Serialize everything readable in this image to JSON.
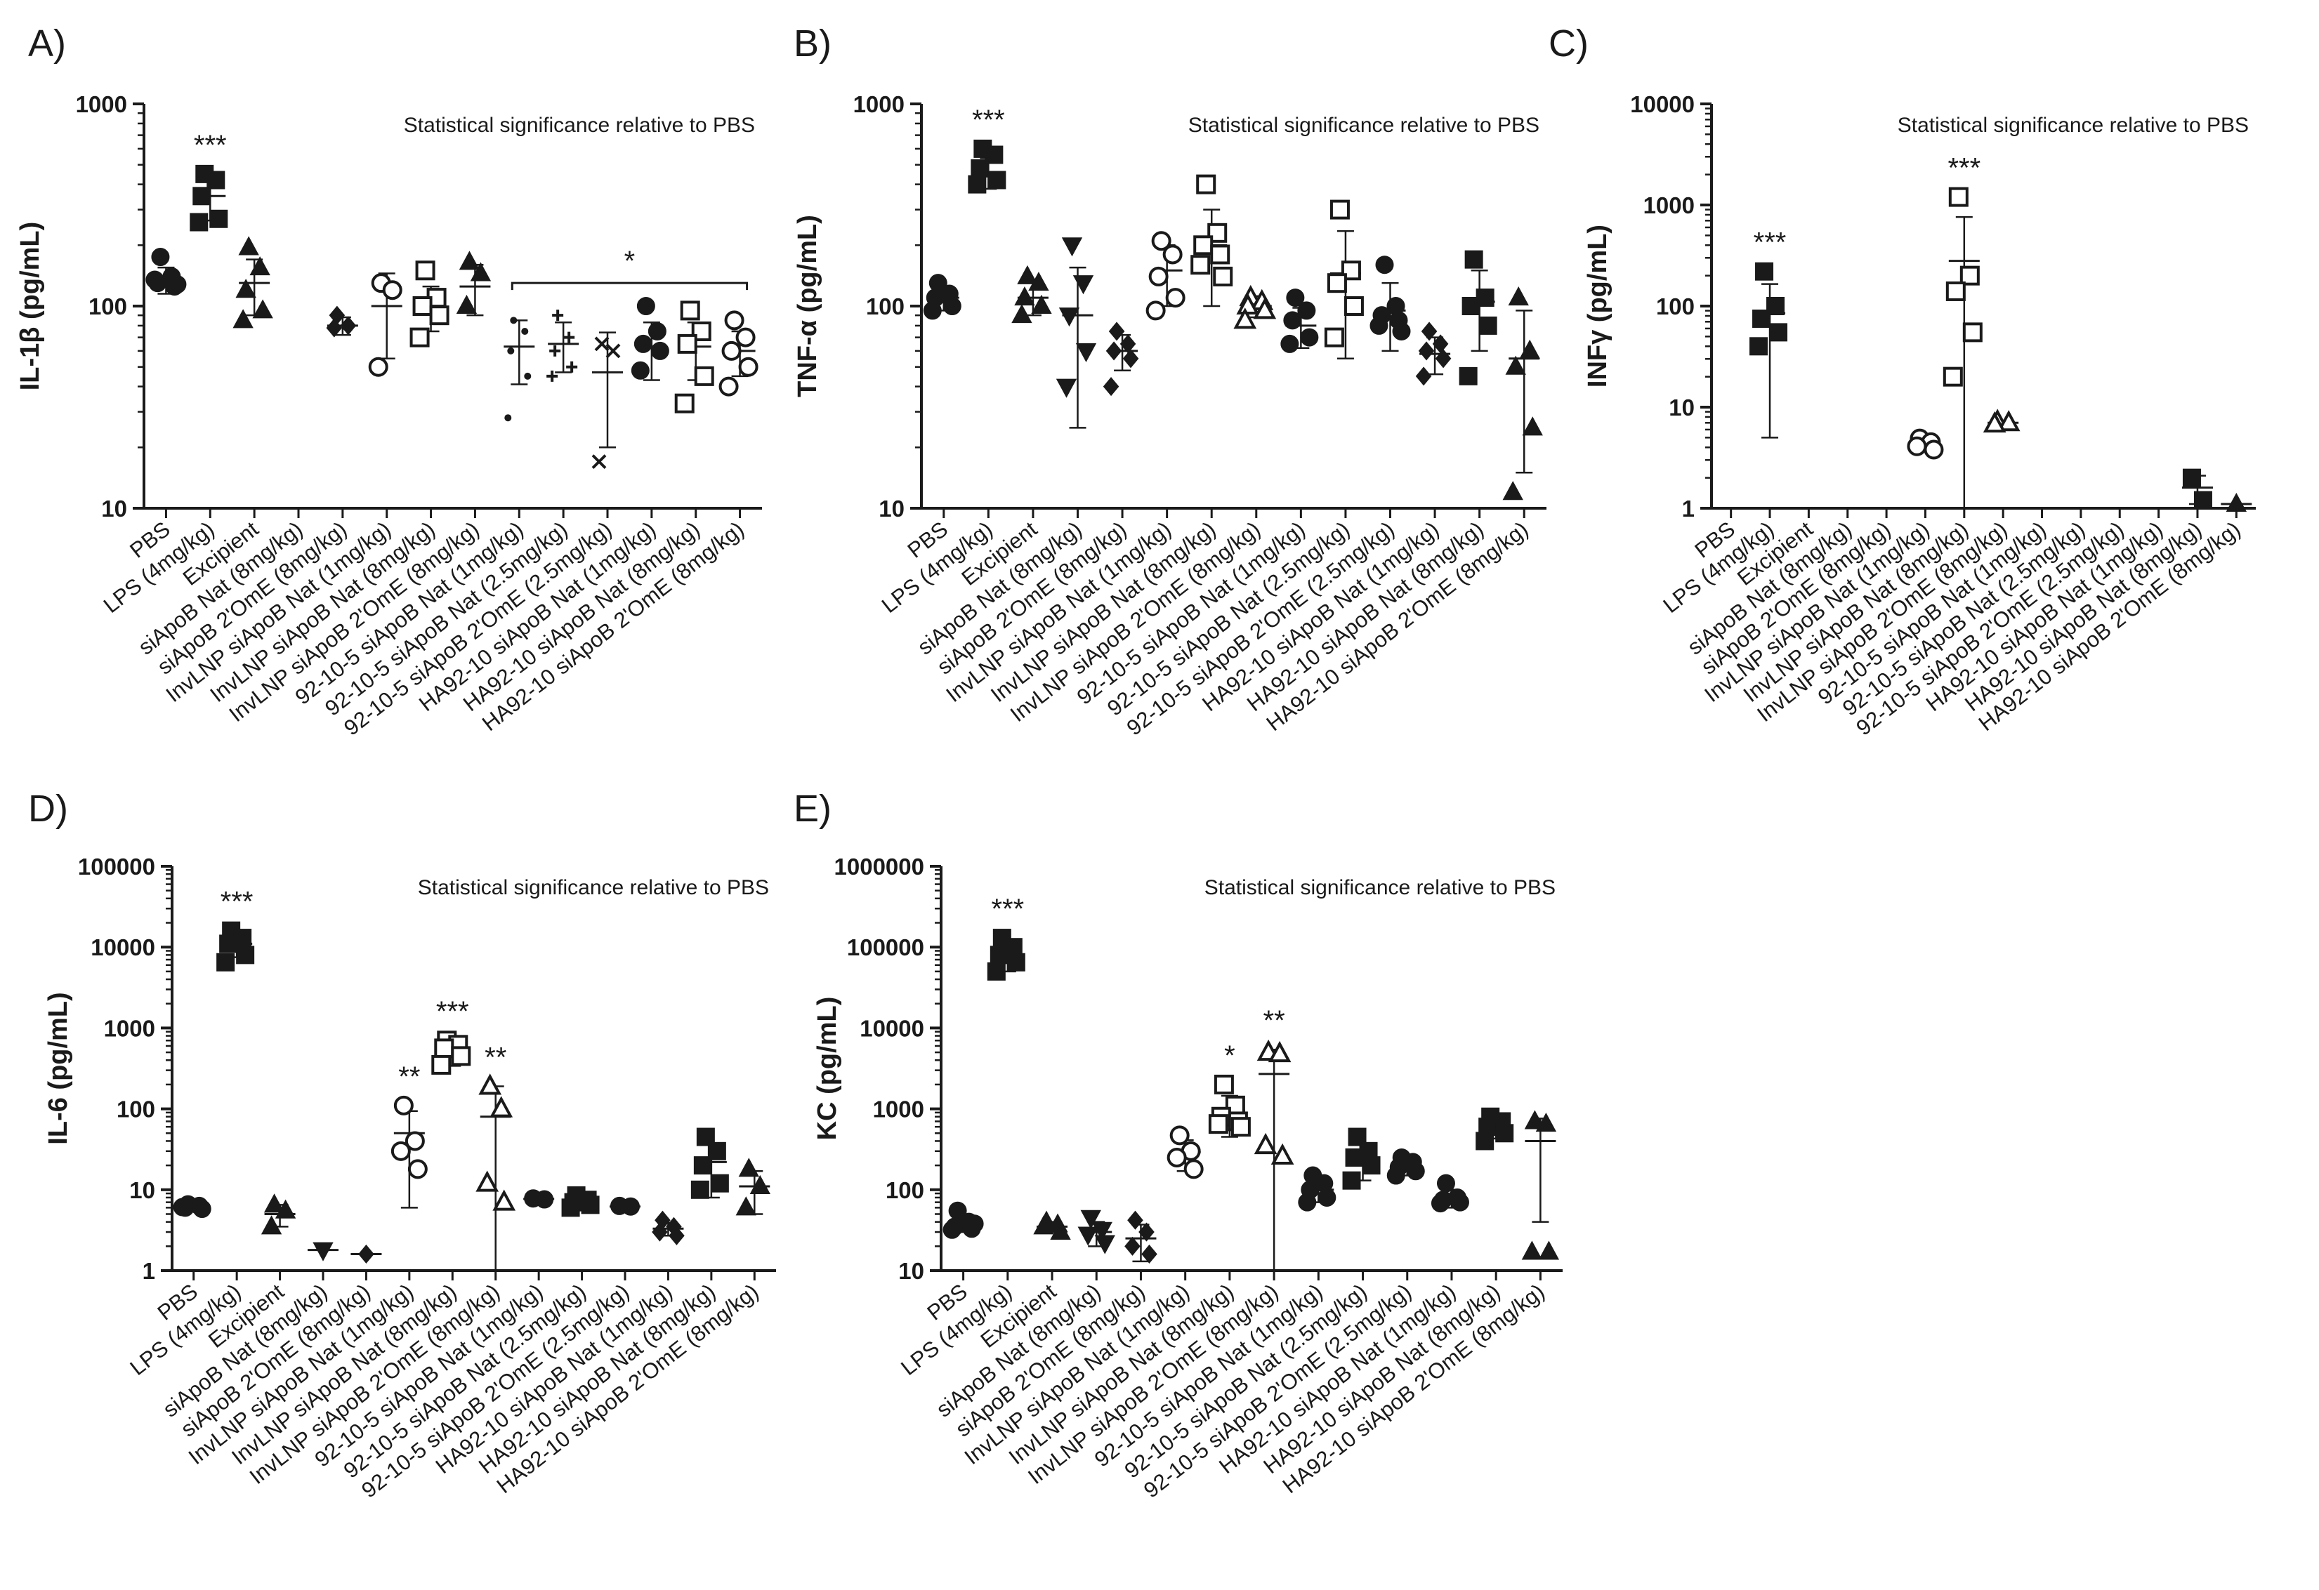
{
  "figure": {
    "categories": [
      "PBS",
      "LPS (4mg/kg)",
      "Excipient",
      "siApoB Nat (8mg/kg)",
      "siApoB 2'OmE (8mg/kg)",
      "InvLNP siApoB Nat (1mg/kg)",
      "InvLNP siApoB Nat (8mg/kg)",
      "InvLNP siApoB 2'OmE (8mg/kg)",
      "92-10-5 siApoB Nat (1mg/kg)",
      "92-10-5 siApoB Nat (2.5mg/kg)",
      "92-10-5 siApoB 2'OmE (2.5mg/kg)",
      "HA92-10 siApoB Nat (1mg/kg)",
      "HA92-10 siApoB Nat (8mg/kg)",
      "HA92-10 siApoB 2'OmE (8mg/kg)"
    ],
    "annotation": "Statistical significance relative to PBS"
  },
  "chart_data": [
    {
      "type": "scatter",
      "panel": "A)",
      "ylabel": "IL-1β (pg/mL)",
      "yscale": "log",
      "ylim": [
        10,
        1000
      ],
      "yticks": [
        "10",
        "100",
        "1000"
      ],
      "groups": [
        {
          "name": "PBS",
          "marker": "circle",
          "filled": true,
          "values": [
            175,
            140,
            130,
            125,
            135,
            128
          ],
          "mean": 135,
          "sd": 20
        },
        {
          "name": "LPS (4mg/kg)",
          "marker": "square",
          "filled": true,
          "values": [
            450,
            420,
            350,
            270,
            260
          ],
          "mean": 350,
          "sd": 85,
          "sig": "***"
        },
        {
          "name": "Excipient",
          "marker": "triangle",
          "filled": true,
          "values": [
            195,
            155,
            120,
            95,
            85
          ],
          "mean": 130,
          "sd": 40
        },
        {
          "name": "siApoB 2'OmE (8mg/kg)",
          "marker": "diamond",
          "filled": true,
          "values": [
            90,
            80,
            78
          ],
          "mean": 80,
          "sd": 8
        },
        {
          "name": "InvLNP siApoB Nat (1mg/kg)",
          "marker": "circle",
          "filled": false,
          "values": [
            130,
            120,
            50
          ],
          "mean": 100,
          "sd": 45
        },
        {
          "name": "InvLNP siApoB Nat (8mg/kg)",
          "marker": "square",
          "filled": false,
          "values": [
            150,
            110,
            100,
            90,
            70
          ],
          "mean": 100,
          "sd": 25
        },
        {
          "name": "InvLNP siApoB 2'OmE (8mg/kg)",
          "marker": "triangle",
          "filled": true,
          "values": [
            165,
            145,
            100
          ],
          "mean": 125,
          "sd": 35
        },
        {
          "name": "92-10-5 siApoB Nat (1mg/kg)",
          "marker": "dot",
          "filled": true,
          "values": [
            85,
            75,
            60,
            45,
            28
          ],
          "mean": 63,
          "sd": 22
        },
        {
          "name": "92-10-5 siApoB Nat (2.5mg/kg)",
          "marker": "plus",
          "filled": true,
          "values": [
            90,
            70,
            60,
            50,
            45
          ],
          "mean": 65,
          "sd": 18
        },
        {
          "name": "92-10-5 siApoB 2'OmE (2.5mg/kg)",
          "marker": "x",
          "filled": true,
          "values": [
            65,
            60,
            17
          ],
          "mean": 47,
          "sd": 27
        },
        {
          "name": "HA92-10 siApoB Nat (1mg/kg)",
          "marker": "circle",
          "filled": true,
          "values": [
            100,
            75,
            65,
            60,
            48
          ],
          "mean": 63,
          "sd": 20
        },
        {
          "name": "HA92-10 siApoB Nat (8mg/kg)",
          "marker": "square",
          "filled": false,
          "values": [
            95,
            75,
            65,
            45,
            33
          ],
          "mean": 63,
          "sd": 20
        },
        {
          "name": "HA92-10 siApoB 2'OmE (8mg/kg)",
          "marker": "circle",
          "filled": false,
          "values": [
            85,
            70,
            60,
            50,
            40
          ],
          "mean": 60,
          "sd": 15
        }
      ],
      "bracket": {
        "from": "92-10-5 siApoB Nat (1mg/kg)",
        "to": "HA92-10 siApoB 2'OmE (8mg/kg)",
        "value": 130,
        "sig": "*"
      }
    },
    {
      "type": "scatter",
      "panel": "B)",
      "ylabel": "TNF-α (pg/mL)",
      "yscale": "log",
      "ylim": [
        10,
        1000
      ],
      "yticks": [
        "10",
        "100",
        "1000"
      ],
      "groups": [
        {
          "name": "PBS",
          "marker": "circle",
          "filled": true,
          "values": [
            130,
            115,
            110,
            100,
            95
          ],
          "mean": 110,
          "sd": 15
        },
        {
          "name": "LPS (4mg/kg)",
          "marker": "square",
          "filled": true,
          "values": [
            600,
            560,
            480,
            420,
            400
          ],
          "mean": 460,
          "sd": 80,
          "sig": "***"
        },
        {
          "name": "Excipient",
          "marker": "triangle",
          "filled": true,
          "values": [
            140,
            130,
            110,
            100,
            90
          ],
          "mean": 110,
          "sd": 20
        },
        {
          "name": "siApoB Nat (8mg/kg)",
          "marker": "triangle-down",
          "filled": true,
          "values": [
            200,
            130,
            90,
            60,
            40
          ],
          "mean": 90,
          "sd": 65
        },
        {
          "name": "siApoB 2'OmE (8mg/kg)",
          "marker": "diamond",
          "filled": true,
          "values": [
            75,
            65,
            60,
            55,
            40
          ],
          "mean": 60,
          "sd": 12
        },
        {
          "name": "InvLNP siApoB Nat (1mg/kg)",
          "marker": "circle",
          "filled": false,
          "values": [
            210,
            180,
            140,
            110,
            95
          ],
          "mean": 150,
          "sd": 50
        },
        {
          "name": "InvLNP siApoB Nat (8mg/kg)",
          "marker": "square",
          "filled": false,
          "values": [
            400,
            230,
            200,
            180,
            160,
            140
          ],
          "mean": 200,
          "sd": 100
        },
        {
          "name": "InvLNP siApoB 2'OmE (8mg/kg)",
          "marker": "triangle",
          "filled": false,
          "values": [
            110,
            105,
            100,
            95,
            85
          ],
          "mean": 100,
          "sd": 12
        },
        {
          "name": "92-10-5 siApoB Nat (1mg/kg)",
          "marker": "circle",
          "filled": true,
          "values": [
            110,
            95,
            85,
            70,
            65
          ],
          "mean": 80,
          "sd": 18
        },
        {
          "name": "92-10-5 siApoB Nat (2.5mg/kg)",
          "marker": "square",
          "filled": false,
          "values": [
            300,
            150,
            130,
            100,
            70
          ],
          "mean": 145,
          "sd": 90
        },
        {
          "name": "92-10-5 siApoB 2'OmE (2.5mg/kg)",
          "marker": "circle",
          "filled": true,
          "values": [
            160,
            100,
            90,
            85,
            80,
            75
          ],
          "mean": 95,
          "sd": 35
        },
        {
          "name": "HA92-10 siApoB Nat (1mg/kg)",
          "marker": "diamond",
          "filled": true,
          "values": [
            75,
            65,
            60,
            55,
            45
          ],
          "mean": 58,
          "sd": 12
        },
        {
          "name": "HA92-10 siApoB Nat (8mg/kg)",
          "marker": "square",
          "filled": true,
          "values": [
            170,
            110,
            100,
            80,
            45
          ],
          "mean": 105,
          "sd": 45
        },
        {
          "name": "HA92-10 siApoB 2'OmE (8mg/kg)",
          "marker": "triangle",
          "filled": true,
          "values": [
            110,
            60,
            50,
            25,
            12
          ],
          "mean": 55,
          "sd": 40
        }
      ]
    },
    {
      "type": "scatter",
      "panel": "C)",
      "ylabel": "INFγ (pg/mL)",
      "yscale": "log",
      "ylim": [
        1,
        10000
      ],
      "yticks": [
        "1",
        "10",
        "100",
        "1000",
        "10000"
      ],
      "groups": [
        {
          "name": "LPS (4mg/kg)",
          "marker": "square",
          "filled": true,
          "values": [
            220,
            100,
            75,
            55,
            40
          ],
          "mean": 85,
          "sd": 80,
          "sig": "***"
        },
        {
          "name": "InvLNP siApoB Nat (1mg/kg)",
          "marker": "circle",
          "filled": false,
          "values": [
            4.9,
            4.5,
            4.1,
            3.8
          ],
          "mean": 4.3,
          "sd": 0.5
        },
        {
          "name": "InvLNP siApoB Nat (8mg/kg)",
          "marker": "square",
          "filled": false,
          "values": [
            1200,
            200,
            140,
            55,
            20
          ],
          "mean": 280,
          "sd": 480,
          "sig": "***"
        },
        {
          "name": "InvLNP siApoB 2'OmE (8mg/kg)",
          "marker": "triangle",
          "filled": false,
          "values": [
            7.2,
            7.0,
            6.8
          ],
          "mean": 7.0,
          "sd": 0.2
        },
        {
          "name": "HA92-10 siApoB Nat (8mg/kg)",
          "marker": "square",
          "filled": true,
          "values": [
            2.0,
            1.2
          ],
          "mean": 1.6,
          "sd": 0.5
        },
        {
          "name": "HA92-10 siApoB 2'OmE (8mg/kg)",
          "marker": "triangle",
          "filled": true,
          "values": [
            1.1
          ],
          "mean": 1.1,
          "sd": 0
        }
      ]
    },
    {
      "type": "scatter",
      "panel": "D)",
      "ylabel": "IL-6 (pg/mL)",
      "yscale": "log",
      "ylim": [
        1,
        100000
      ],
      "yticks": [
        "1",
        "10",
        "100",
        "1000",
        "10000",
        "100000"
      ],
      "groups": [
        {
          "name": "PBS",
          "marker": "circle",
          "filled": true,
          "values": [
            6.6,
            6.3,
            6.0,
            5.8,
            6.1
          ],
          "mean": 6.1,
          "sd": 0.4
        },
        {
          "name": "LPS (4mg/kg)",
          "marker": "square",
          "filled": true,
          "values": [
            16000,
            13000,
            11000,
            8000,
            6500
          ],
          "mean": 11000,
          "sd": 3500,
          "sig": "***"
        },
        {
          "name": "Excipient",
          "marker": "triangle",
          "filled": true,
          "values": [
            6.5,
            5.5,
            3.5
          ],
          "mean": 5.0,
          "sd": 1.5
        },
        {
          "name": "siApoB Nat (8mg/kg)",
          "marker": "triangle-down",
          "filled": true,
          "values": [
            1.8
          ],
          "mean": 1.8,
          "sd": 0
        },
        {
          "name": "siApoB 2'OmE (8mg/kg)",
          "marker": "diamond",
          "filled": true,
          "values": [
            1.6
          ],
          "mean": 1.6,
          "sd": 0
        },
        {
          "name": "InvLNP siApoB Nat (1mg/kg)",
          "marker": "circle",
          "filled": false,
          "values": [
            110,
            40,
            30,
            18
          ],
          "mean": 50,
          "sd": 44,
          "sig": "**"
        },
        {
          "name": "InvLNP siApoB Nat (8mg/kg)",
          "marker": "square",
          "filled": false,
          "values": [
            700,
            620,
            560,
            450,
            350
          ],
          "mean": 520,
          "sd": 180,
          "sig": "***"
        },
        {
          "name": "InvLNP siApoB 2'OmE (8mg/kg)",
          "marker": "triangle",
          "filled": false,
          "values": [
            190,
            100,
            12,
            7
          ],
          "mean": 80,
          "sd": 110,
          "sig": "**"
        },
        {
          "name": "92-10-5 siApoB Nat (1mg/kg)",
          "marker": "circle",
          "filled": true,
          "values": [
            7.8,
            7.6
          ],
          "mean": 7.7,
          "sd": 0.2
        },
        {
          "name": "92-10-5 siApoB Nat (2.5mg/kg)",
          "marker": "square",
          "filled": true,
          "values": [
            8.5,
            7.5,
            7.0,
            6.5,
            6.0
          ],
          "mean": 7.1,
          "sd": 1.0
        },
        {
          "name": "92-10-5 siApoB 2'OmE (2.5mg/kg)",
          "marker": "circle",
          "filled": true,
          "values": [
            6.3,
            6.2
          ],
          "mean": 6.2,
          "sd": 0.1
        },
        {
          "name": "HA92-10 siApoB Nat (1mg/kg)",
          "marker": "diamond",
          "filled": true,
          "values": [
            4.2,
            3.5,
            3.0,
            2.7
          ],
          "mean": 3.3,
          "sd": 0.6
        },
        {
          "name": "HA92-10 siApoB Nat (8mg/kg)",
          "marker": "square",
          "filled": true,
          "values": [
            45,
            30,
            20,
            12,
            10
          ],
          "mean": 22,
          "sd": 14
        },
        {
          "name": "HA92-10 siApoB 2'OmE (8mg/kg)",
          "marker": "triangle",
          "filled": true,
          "values": [
            18,
            11,
            6
          ],
          "mean": 11,
          "sd": 6
        }
      ]
    },
    {
      "type": "scatter",
      "panel": "E)",
      "ylabel": "KC (pg/mL)",
      "yscale": "log",
      "ylim": [
        10,
        1000000
      ],
      "yticks": [
        "10",
        "100",
        "1000",
        "10000",
        "100000",
        "1000000"
      ],
      "groups": [
        {
          "name": "PBS",
          "marker": "circle",
          "filled": true,
          "values": [
            55,
            40,
            35,
            33,
            32,
            38
          ],
          "mean": 38,
          "sd": 8
        },
        {
          "name": "LPS (4mg/kg)",
          "marker": "square",
          "filled": true,
          "values": [
            130000,
            100000,
            80000,
            65000,
            50000
          ],
          "mean": 80000,
          "sd": 30000,
          "sig": "***"
        },
        {
          "name": "Excipient",
          "marker": "triangle",
          "filled": true,
          "values": [
            40,
            37,
            35,
            30
          ],
          "mean": 35,
          "sd": 5
        },
        {
          "name": "siApoB Nat (8mg/kg)",
          "marker": "triangle-down",
          "filled": true,
          "values": [
            45,
            32,
            28,
            22
          ],
          "mean": 30,
          "sd": 10
        },
        {
          "name": "siApoB 2'OmE (8mg/kg)",
          "marker": "diamond",
          "filled": true,
          "values": [
            42,
            30,
            20,
            16
          ],
          "mean": 25,
          "sd": 12
        },
        {
          "name": "InvLNP siApoB Nat (1mg/kg)",
          "marker": "circle",
          "filled": false,
          "values": [
            470,
            300,
            250,
            180
          ],
          "mean": 290,
          "sd": 120
        },
        {
          "name": "InvLNP siApoB Nat (8mg/kg)",
          "marker": "square",
          "filled": false,
          "values": [
            2000,
            1100,
            800,
            700,
            650,
            600
          ],
          "mean": 950,
          "sd": 500,
          "sig": "*"
        },
        {
          "name": "InvLNP siApoB 2'OmE (8mg/kg)",
          "marker": "triangle",
          "filled": false,
          "values": [
            5000,
            4800,
            350,
            260
          ],
          "mean": 2700,
          "sd": 2700,
          "sig": "**"
        },
        {
          "name": "92-10-5 siApoB Nat (1mg/kg)",
          "marker": "circle",
          "filled": true,
          "values": [
            150,
            120,
            100,
            80,
            70
          ],
          "mean": 100,
          "sd": 30
        },
        {
          "name": "92-10-5 siApoB Nat (2.5mg/kg)",
          "marker": "square",
          "filled": true,
          "values": [
            450,
            300,
            250,
            200,
            130
          ],
          "mean": 250,
          "sd": 120
        },
        {
          "name": "92-10-5 siApoB 2'OmE (2.5mg/kg)",
          "marker": "circle",
          "filled": true,
          "values": [
            250,
            220,
            190,
            170,
            150
          ],
          "mean": 190,
          "sd": 40
        },
        {
          "name": "HA92-10 siApoB Nat (1mg/kg)",
          "marker": "circle",
          "filled": true,
          "values": [
            120,
            80,
            75,
            70,
            68
          ],
          "mean": 80,
          "sd": 20
        },
        {
          "name": "HA92-10 siApoB Nat (8mg/kg)",
          "marker": "square",
          "filled": true,
          "values": [
            800,
            700,
            600,
            500,
            400
          ],
          "mean": 580,
          "sd": 150
        },
        {
          "name": "HA92-10 siApoB 2'OmE (8mg/kg)",
          "marker": "triangle",
          "filled": true,
          "values": [
            700,
            650,
            17,
            17
          ],
          "mean": 400,
          "sd": 360
        }
      ]
    }
  ]
}
